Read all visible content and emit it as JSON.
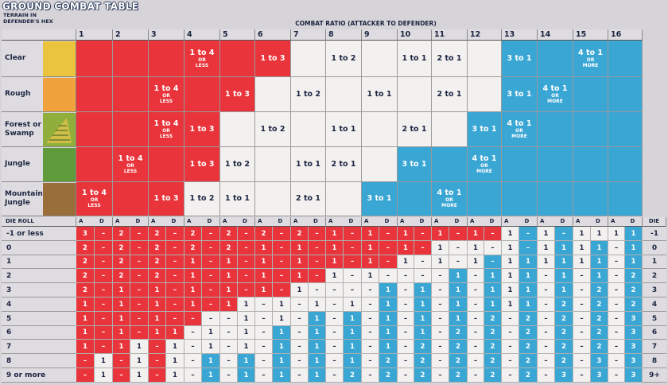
{
  "header": {
    "title": "GROUND COMBAT TABLE",
    "terrain_label_line1": "TERRAIN IN",
    "terrain_label_line2": "DEFENDER'S HEX",
    "ratio_label": "COMBAT RATIO (ATTACKER TO DEFENDER)"
  },
  "columns": [
    "1",
    "2",
    "3",
    "4",
    "5",
    "6",
    "7",
    "8",
    "9",
    "10",
    "11",
    "12",
    "13",
    "14",
    "15",
    "16"
  ],
  "colors": {
    "red": "#e8343a",
    "white": "#f3f1f0",
    "blue": "#3aa6d4",
    "text_red": "#ffffff",
    "text_white": "#1b2440",
    "text_blue": "#ffffff"
  },
  "terrain": [
    {
      "name": "Clear",
      "swatch": "#e9c43c",
      "cells": "RRRRRRWWWWWWBBBB",
      "labels": [
        {
          "col": 4,
          "text": "1 to 4",
          "sub": "OR LESS"
        },
        {
          "col": 6,
          "text": "1 to 3"
        },
        {
          "col": 8,
          "text": "1 to 2"
        },
        {
          "col": 10,
          "text": "1 to 1"
        },
        {
          "col": 11,
          "text": "2 to 1"
        },
        {
          "col": 13,
          "text": "3 to 1"
        },
        {
          "col": 15,
          "text": "4 to 1",
          "sub": "OR MORE"
        }
      ]
    },
    {
      "name": "Rough",
      "swatch": "#f0a23c",
      "cells": "RRRRRWWWWWWWBBBB",
      "labels": [
        {
          "col": 3,
          "text": "1 to 4",
          "sub": "OR LESS"
        },
        {
          "col": 5,
          "text": "1 to 3"
        },
        {
          "col": 7,
          "text": "1 to 2"
        },
        {
          "col": 9,
          "text": "1 to 1"
        },
        {
          "col": 11,
          "text": "2 to 1"
        },
        {
          "col": 13,
          "text": "3 to 1"
        },
        {
          "col": 14,
          "text": "4 to 1",
          "sub": "OR MORE"
        }
      ]
    },
    {
      "name": "Forest or Swamp",
      "swatch": "#8fae3c",
      "cells": "RRRRWWWWWWWBBBBB",
      "labels": [
        {
          "col": 3,
          "text": "1 to 4",
          "sub": "OR LESS"
        },
        {
          "col": 4,
          "text": "1 to 3"
        },
        {
          "col": 6,
          "text": "1 to 2"
        },
        {
          "col": 8,
          "text": "1 to 1"
        },
        {
          "col": 10,
          "text": "2 to 1"
        },
        {
          "col": 12,
          "text": "3 to 1"
        },
        {
          "col": 13,
          "text": "4 to 1",
          "sub": "OR MORE"
        }
      ]
    },
    {
      "name": "Jungle",
      "swatch": "#5f9b3a",
      "cells": "RRRRWWWWWBBBBBBB",
      "labels": [
        {
          "col": 2,
          "text": "1 to 4",
          "sub": "OR LESS"
        },
        {
          "col": 4,
          "text": "1 to 3"
        },
        {
          "col": 5,
          "text": "1 to 2"
        },
        {
          "col": 7,
          "text": "1 to 1"
        },
        {
          "col": 8,
          "text": "2 to 1"
        },
        {
          "col": 10,
          "text": "3 to 1"
        },
        {
          "col": 12,
          "text": "4 to 1",
          "sub": "OR MORE"
        }
      ]
    },
    {
      "name": "Mountain Jungle",
      "swatch": "#9a6e3a",
      "cells": "RRRWWWWWBBBBBBBB",
      "labels": [
        {
          "col": 1,
          "text": "1 to 4",
          "sub": "OR LESS"
        },
        {
          "col": 3,
          "text": "1 to 3"
        },
        {
          "col": 4,
          "text": "1 to 2"
        },
        {
          "col": 5,
          "text": "1 to 1"
        },
        {
          "col": 7,
          "text": "2 to 1"
        },
        {
          "col": 9,
          "text": "3 to 1"
        },
        {
          "col": 11,
          "text": "4 to 1",
          "sub": "OR MORE"
        }
      ]
    }
  ],
  "results_header": {
    "die_roll": "DIE ROLL",
    "a": "A",
    "d": "D",
    "die": "DIE"
  },
  "rolls": [
    {
      "label": "-1 or less",
      "right": "-1",
      "a": [
        "3",
        "2",
        "2",
        "2",
        "2",
        "2",
        "2",
        "1",
        "1",
        "1",
        "1",
        "1",
        "1",
        "1",
        "1",
        "1"
      ],
      "d": [
        "–",
        "–",
        "–",
        "–",
        "–",
        "–",
        "–",
        "–",
        "–",
        "–",
        "–",
        "–",
        "–",
        "–",
        "1",
        "1"
      ],
      "ca": "RRRRRRRRRRRRWWWW",
      "cd": "RRRRRRRRRRRRBBWB"
    },
    {
      "label": "0",
      "right": "0",
      "a": [
        "2",
        "2",
        "2",
        "2",
        "2",
        "1",
        "1",
        "1",
        "1",
        "1",
        "1",
        "1",
        "1",
        "1",
        "1",
        "–"
      ],
      "d": [
        "–",
        "–",
        "–",
        "–",
        "–",
        "–",
        "–",
        "–",
        "–",
        "–",
        "–",
        "–",
        "–",
        "1",
        "1",
        "1"
      ],
      "ca": "RRRRRRRRRRWWWWWW",
      "cd": "RRRRRRRRRRWWBBBB"
    },
    {
      "label": "1",
      "right": "1",
      "a": [
        "2",
        "2",
        "2",
        "1",
        "1",
        "1",
        "1",
        "1",
        "1",
        "1",
        "1",
        "1",
        "1",
        "1",
        "1",
        "–"
      ],
      "d": [
        "–",
        "–",
        "–",
        "–",
        "–",
        "–",
        "–",
        "–",
        "–",
        "–",
        "–",
        "–",
        "1",
        "1",
        "1",
        "1"
      ],
      "ca": "RRRRRRRRRWWWWWWW",
      "cd": "RRRRRRRRRWWBBBBB"
    },
    {
      "label": "2",
      "right": "2",
      "a": [
        "2",
        "2",
        "2",
        "1",
        "1",
        "1",
        "1",
        "1",
        "1",
        "–",
        "–",
        "–",
        "1",
        "–",
        "–",
        "–"
      ],
      "d": [
        "–",
        "–",
        "–",
        "–",
        "–",
        "–",
        "–",
        "–",
        "–",
        "–",
        "1",
        "1",
        "1",
        "1",
        "1",
        "2"
      ],
      "ca": "RRRRRRRWWWWWWWWW",
      "cd": "RRRRRRRWWWBBBBBB"
    },
    {
      "label": "3",
      "right": "3",
      "a": [
        "2",
        "1",
        "1",
        "1",
        "1",
        "1",
        "1",
        "–",
        "–",
        "–",
        "–",
        "–",
        "1",
        "–",
        "–",
        "–"
      ],
      "d": [
        "–",
        "–",
        "–",
        "–",
        "–",
        "–",
        "–",
        "–",
        "1",
        "1",
        "1",
        "1",
        "1",
        "1",
        "2",
        "2"
      ],
      "ca": "RRRRRRWWWWWWWWWW",
      "cd": "RRRRRRWWBBBBBBBB"
    },
    {
      "label": "4",
      "right": "4",
      "a": [
        "1",
        "1",
        "1",
        "1",
        "1",
        "–",
        "–",
        "–",
        "–",
        "–",
        "–",
        "–",
        "1",
        "–",
        "–",
        "–"
      ],
      "d": [
        "–",
        "–",
        "–",
        "–",
        "1",
        "1",
        "1",
        "1",
        "1",
        "1",
        "1",
        "1",
        "1",
        "2",
        "2",
        "2"
      ],
      "ca": "RRRRRWWWWWWWWWWW",
      "cd": "RRRRWWWWBBBBBBBB"
    },
    {
      "label": "5",
      "right": "5",
      "a": [
        "1",
        "1",
        "1",
        "–",
        "–",
        "–",
        "–",
        "–",
        "–",
        "–",
        "–",
        "–",
        "–",
        "–",
        "–",
        "–"
      ],
      "d": [
        "–",
        "–",
        "–",
        "–",
        "1",
        "1",
        "1",
        "1",
        "1",
        "1",
        "1",
        "2",
        "2",
        "2",
        "2",
        "3"
      ],
      "ca": "RRRRWWWWWWWWWWWW",
      "cd": "RRRWWWBBBBBBBBBB"
    },
    {
      "label": "6",
      "right": "6",
      "a": [
        "1",
        "1",
        "1",
        "–",
        "–",
        "–",
        "–",
        "–",
        "–",
        "–",
        "–",
        "–",
        "–",
        "–",
        "–",
        "–"
      ],
      "d": [
        "–",
        "–",
        "1",
        "1",
        "1",
        "1",
        "1",
        "1",
        "1",
        "1",
        "2",
        "2",
        "2",
        "2",
        "2",
        "3"
      ],
      "ca": "RRRWWWWWWWWWWWWW",
      "cd": "RRRWWBBBBBBBBBBB"
    },
    {
      "label": "7",
      "right": "7",
      "a": [
        "1",
        "1",
        "–",
        "–",
        "–",
        "–",
        "–",
        "–",
        "–",
        "–",
        "–",
        "–",
        "–",
        "–",
        "–",
        "–"
      ],
      "d": [
        "–",
        "1",
        "1",
        "1",
        "1",
        "1",
        "1",
        "1",
        "1",
        "2",
        "2",
        "2",
        "2",
        "2",
        "2",
        "3"
      ],
      "ca": "RRRWWWWWWWWWWWWW",
      "cd": "RWWWWBBBBBBBBBBB"
    },
    {
      "label": "8",
      "right": "8",
      "a": [
        "–",
        "–",
        "–",
        "–",
        "–",
        "–",
        "–",
        "–",
        "–",
        "–",
        "–",
        "–",
        "–",
        "–",
        "–",
        "–"
      ],
      "d": [
        "1",
        "1",
        "1",
        "1",
        "1",
        "1",
        "1",
        "1",
        "2",
        "2",
        "2",
        "2",
        "2",
        "2",
        "3",
        "3"
      ],
      "ca": "RRRWWWWWWWWWWWWW",
      "cd": "WWWBBBBBBBBBBBBB"
    },
    {
      "label": "9 or more",
      "right": "9+",
      "a": [
        "–",
        "–",
        "–",
        "–",
        "–",
        "–",
        "–",
        "–",
        "–",
        "–",
        "–",
        "–",
        "–",
        "–",
        "–",
        "–"
      ],
      "d": [
        "1",
        "1",
        "1",
        "1",
        "1",
        "1",
        "1",
        "2",
        "2",
        "2",
        "2",
        "2",
        "2",
        "3",
        "3",
        "3"
      ],
      "ca": "RRRWWWWWWWWWWWWW",
      "cd": "WWWBBBBBBBBBBBBB"
    }
  ]
}
